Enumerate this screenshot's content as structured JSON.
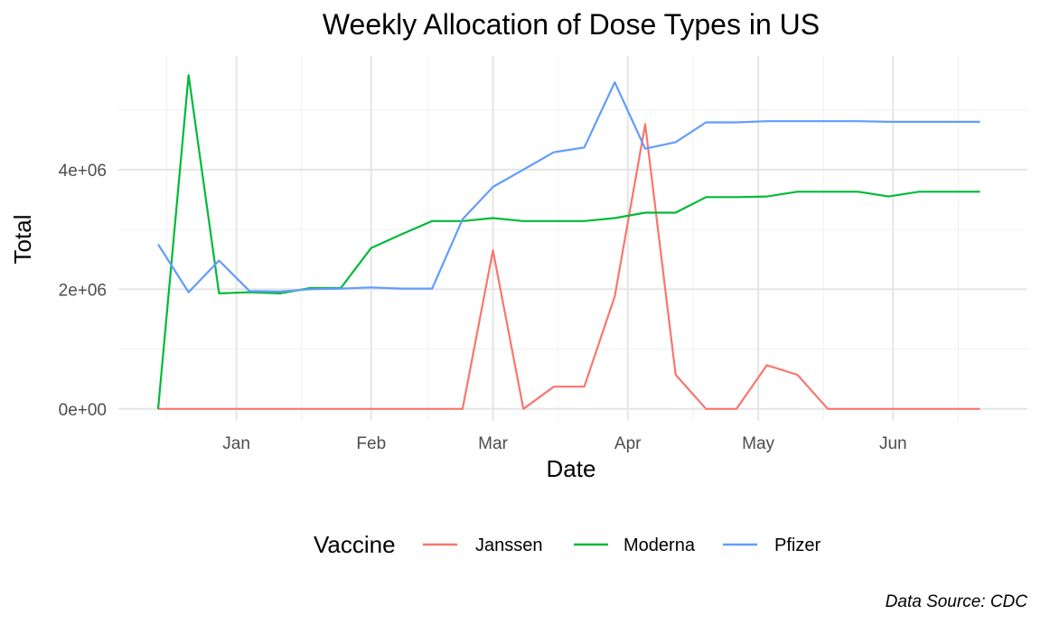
{
  "chart_data": {
    "type": "line",
    "title": "Weekly Allocation of Dose Types in US",
    "xlabel": "Date",
    "ylabel": "Total",
    "caption": "Data Source: CDC",
    "legend": {
      "title": "Vaccine",
      "position": "bottom"
    },
    "grid": true,
    "x_tick_labels": [
      "Jan",
      "Feb",
      "Mar",
      "Apr",
      "May",
      "Jun"
    ],
    "y_tick_labels": [
      "0e+00",
      "2e+06",
      "4e+06"
    ],
    "ylim": [
      -200000,
      5900000
    ],
    "x": [
      "2020-12-14",
      "2020-12-21",
      "2020-12-28",
      "2021-01-04",
      "2021-01-11",
      "2021-01-18",
      "2021-01-25",
      "2021-02-01",
      "2021-02-08",
      "2021-02-15",
      "2021-02-22",
      "2021-03-01",
      "2021-03-08",
      "2021-03-15",
      "2021-03-22",
      "2021-03-29",
      "2021-04-05",
      "2021-04-12",
      "2021-04-19",
      "2021-04-26",
      "2021-05-03",
      "2021-05-10",
      "2021-05-17",
      "2021-05-24",
      "2021-05-31",
      "2021-06-07",
      "2021-06-14",
      "2021-06-21"
    ],
    "series": [
      {
        "name": "Janssen",
        "color": "#F8766D",
        "values": [
          0,
          0,
          0,
          0,
          0,
          0,
          0,
          0,
          0,
          0,
          0,
          2650000,
          0,
          370000,
          370000,
          1880000,
          4760000,
          570000,
          0,
          0,
          730000,
          570000,
          0,
          0,
          0,
          0,
          0,
          0
        ]
      },
      {
        "name": "Moderna",
        "color": "#00BA38",
        "values": [
          0,
          5580000,
          1930000,
          1950000,
          1930000,
          2020000,
          2020000,
          2690000,
          2920000,
          3140000,
          3140000,
          3190000,
          3140000,
          3140000,
          3140000,
          3190000,
          3280000,
          3280000,
          3540000,
          3540000,
          3550000,
          3630000,
          3630000,
          3630000,
          3550000,
          3630000,
          3630000,
          3630000
        ]
      },
      {
        "name": "Pfizer",
        "color": "#619CFF",
        "values": [
          2750000,
          1950000,
          2480000,
          1970000,
          1960000,
          2000000,
          2010000,
          2030000,
          2010000,
          2010000,
          3170000,
          3710000,
          4000000,
          4290000,
          4370000,
          5460000,
          4350000,
          4460000,
          4790000,
          4790000,
          4810000,
          4810000,
          4810000,
          4810000,
          4800000,
          4800000,
          4800000,
          4800000
        ]
      }
    ]
  }
}
